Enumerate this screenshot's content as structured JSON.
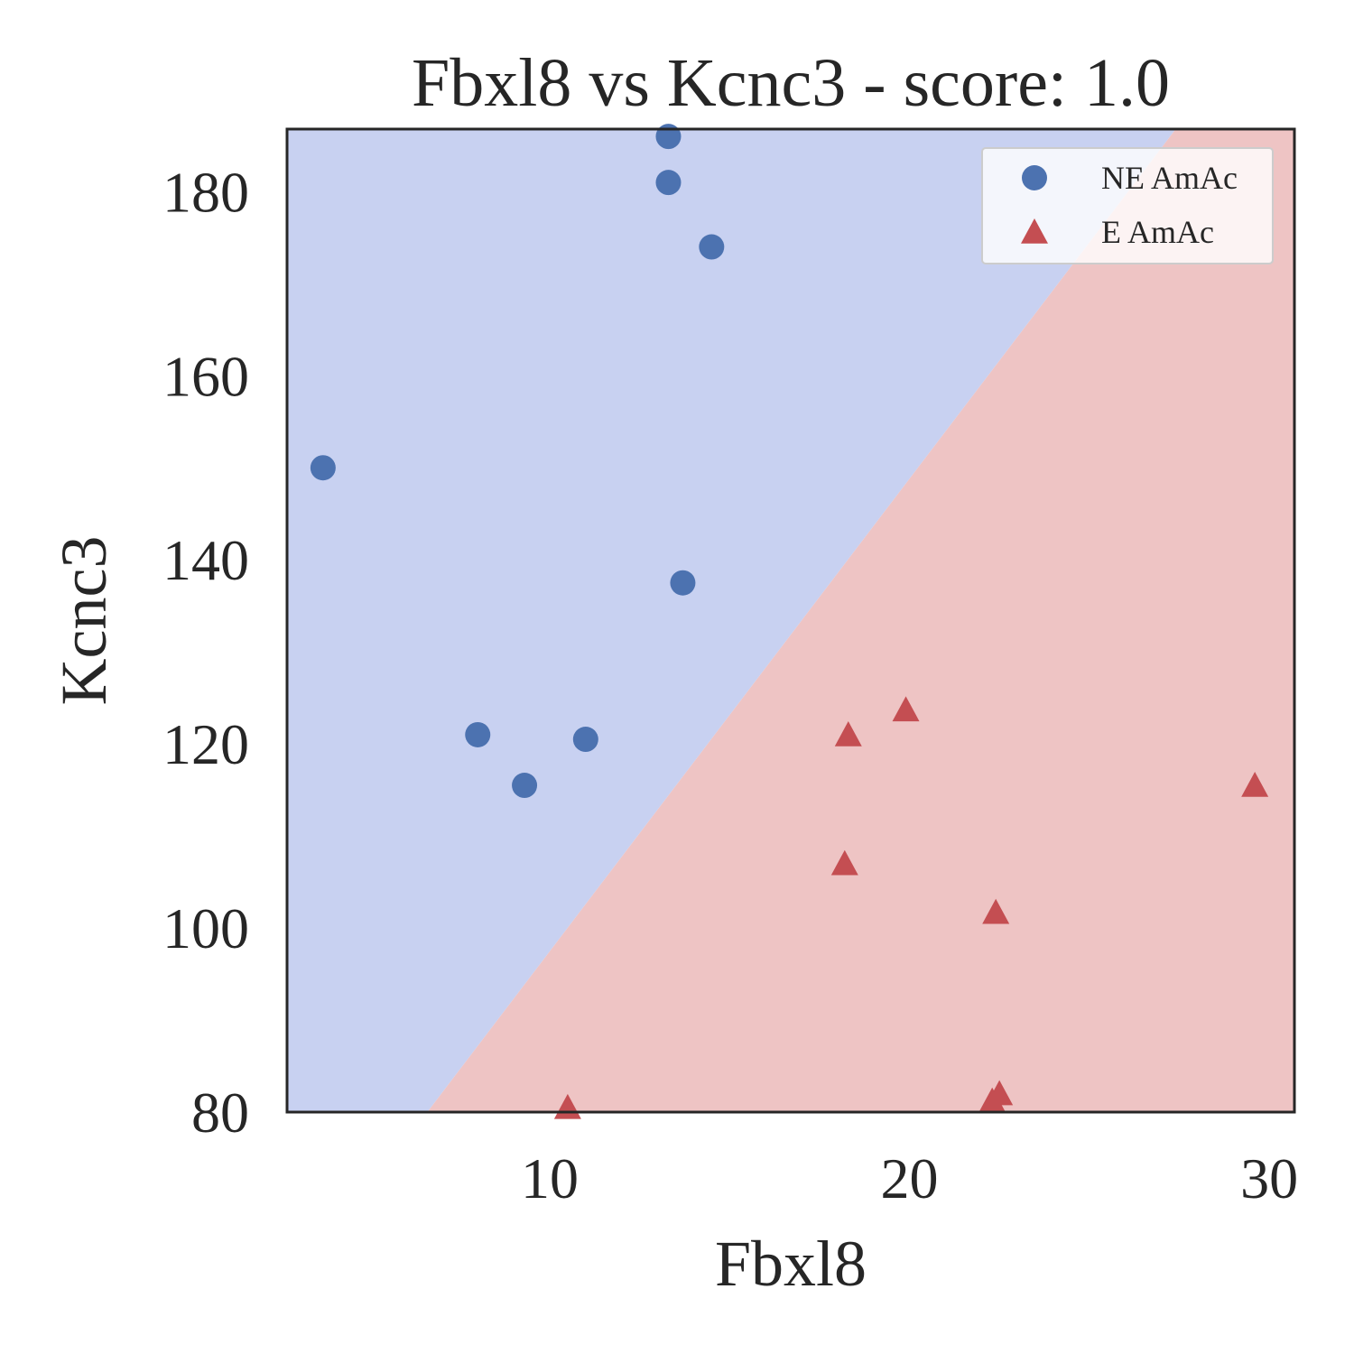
{
  "chart_data": {
    "type": "scatter",
    "title": "Fbxl8 vs Kcnc3 - score: 1.0",
    "xlabel": "Fbxl8",
    "ylabel": "Kcnc3",
    "xlim": [
      2.7,
      30.7
    ],
    "ylim": [
      80,
      186.8
    ],
    "xticks": [
      10,
      20,
      30
    ],
    "yticks": [
      80,
      100,
      120,
      140,
      160,
      180
    ],
    "grid": false,
    "legend_position": "top-right",
    "decision_boundary": {
      "line": [
        [
          6.6,
          80
        ],
        [
          27.4,
          186.8
        ]
      ],
      "upper_left_class": "NE AmAc",
      "lower_right_class": "E AmAc"
    },
    "series": [
      {
        "name": "NE AmAc",
        "marker": "circle",
        "color": "#4c72b0",
        "points": [
          {
            "x": 3.7,
            "y": 150.0
          },
          {
            "x": 13.3,
            "y": 186.0
          },
          {
            "x": 13.3,
            "y": 181.0
          },
          {
            "x": 14.5,
            "y": 174.0
          },
          {
            "x": 13.7,
            "y": 137.5
          },
          {
            "x": 8.0,
            "y": 121.0
          },
          {
            "x": 11.0,
            "y": 120.5
          },
          {
            "x": 9.3,
            "y": 115.5
          }
        ]
      },
      {
        "name": "E AmAc",
        "marker": "triangle",
        "color": "#c44e52",
        "points": [
          {
            "x": 10.5,
            "y": 80.5
          },
          {
            "x": 18.3,
            "y": 121.0
          },
          {
            "x": 19.9,
            "y": 123.7
          },
          {
            "x": 18.2,
            "y": 107.0
          },
          {
            "x": 22.4,
            "y": 101.7
          },
          {
            "x": 22.5,
            "y": 82.0
          },
          {
            "x": 22.3,
            "y": 81.2
          },
          {
            "x": 29.6,
            "y": 115.5
          }
        ]
      }
    ],
    "region_colors": {
      "NE AmAc": "#c8d1f1",
      "E AmAc": "#eec4c4"
    }
  }
}
